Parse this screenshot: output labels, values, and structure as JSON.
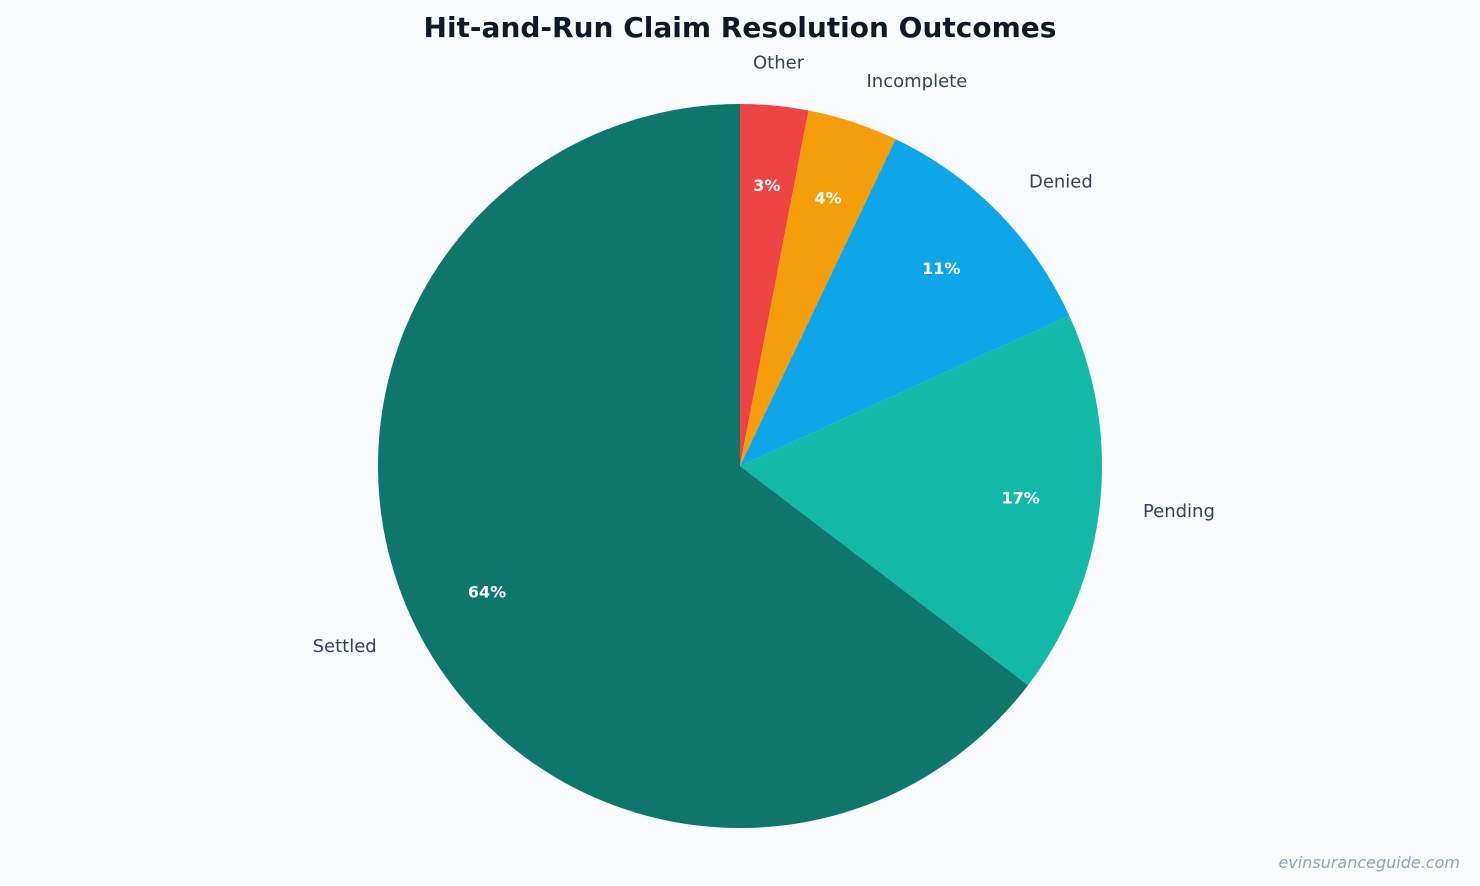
{
  "chart_data": {
    "type": "pie",
    "title": "Hit-and-Run Claim Resolution Outcomes",
    "start_angle_deg": 90,
    "direction": "clockwise",
    "slices": [
      {
        "label": "Other",
        "value": 3,
        "pct_label": "3%",
        "color": "#ef4444"
      },
      {
        "label": "Incomplete",
        "value": 4,
        "pct_label": "4%",
        "color": "#f59e0b"
      },
      {
        "label": "Denied",
        "value": 11,
        "pct_label": "11%",
        "color": "#0ea5e9"
      },
      {
        "label": "Pending",
        "value": 17,
        "pct_label": "17%",
        "color": "#14b8a6"
      },
      {
        "label": "Settled",
        "value": 64,
        "pct_label": "64%",
        "color": "#0f766e"
      }
    ]
  },
  "watermark": "evinsuranceguide.com"
}
